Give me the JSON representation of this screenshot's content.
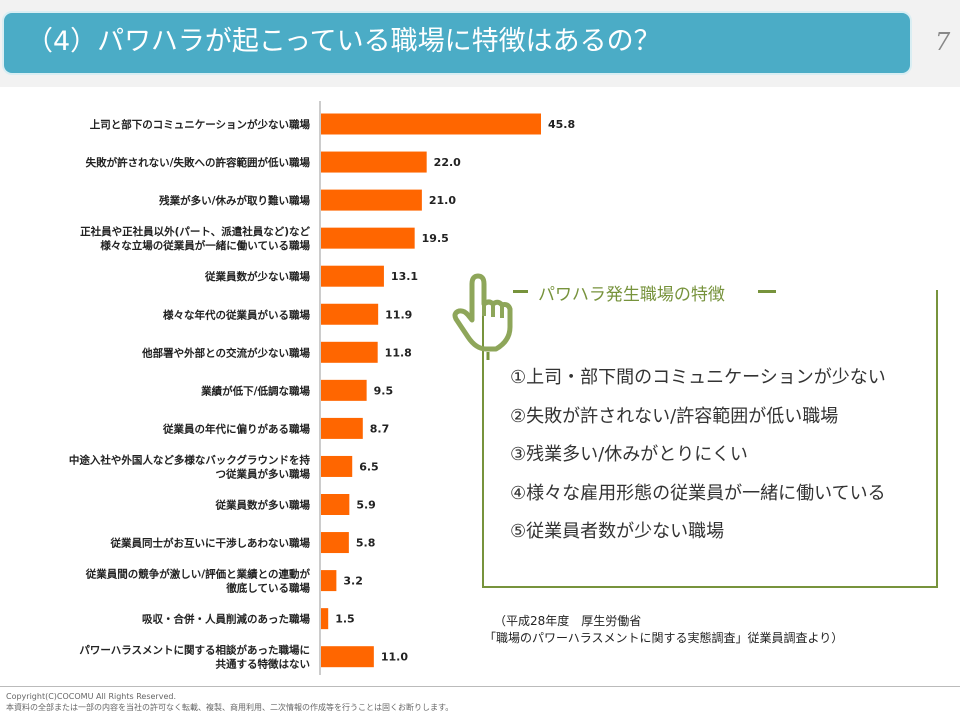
{
  "header": {
    "title": "（4）パワハラが起こっている職場に特徴はあるの？",
    "page_number": "7"
  },
  "chart_data": {
    "type": "bar",
    "orientation": "horizontal",
    "xlim": [
      0,
      50
    ],
    "grid": false,
    "bar_color": "#ff6600",
    "categories": [
      "上司と部下のコミュニケーションが少ない職場",
      "失敗が許されない/失敗への許容範囲が低い職場",
      "残業が多い/休みが取り難い職場",
      "正社員や正社員以外(パート、派遣社員など)など|様々な立場の従業員が一緒に働いている職場",
      "従業員数が少ない職場",
      "様々な年代の従業員がいる職場",
      "他部署や外部との交流が少ない職場",
      "業績が低下/低調な職場",
      "従業員の年代に偏りがある職場",
      "中途入社や外国人など多様なバックグラウンドを持|つ従業員が多い職場",
      "従業員数が多い職場",
      "従業員同士がお互いに干渉しあわない職場",
      "従業員間の競争が激しい/評価と業績との連動が|徹底している職場",
      "吸収・合併・人員削減のあった職場",
      "パワーハラスメントに関する相談があった職場に|共通する特徴はない"
    ],
    "values": [
      45.8,
      22.0,
      21.0,
      19.5,
      13.1,
      11.9,
      11.8,
      9.5,
      8.7,
      6.5,
      5.9,
      5.8,
      3.2,
      1.5,
      11.0
    ]
  },
  "features": {
    "title": "パワハラ発生職場の特徴",
    "icon": "pointing-hand-icon",
    "color": "#77933c",
    "items": [
      "①上司・部下間のコミュニケーションが少ない",
      "②失敗が許されない/許容範囲が低い職場",
      "③残業多い/休みがとりにくい",
      "④様々な雇用形態の従業員が一緒に働いている",
      "⑤従業員者数が少ない職場"
    ]
  },
  "source": {
    "line1": "（平成28年度　厚生労働省",
    "line2": "「職場のパワーハラスメントに関する実態調査」従業員調査より）"
  },
  "footer": {
    "copyright": "Copyright(C)COCOMU All Rights Reserved.",
    "notice": "本資料の全部または一部の内容を当社の許可なく転載、複製、商用利用、二次情報の作成等を行うことは固くお断りします。"
  }
}
